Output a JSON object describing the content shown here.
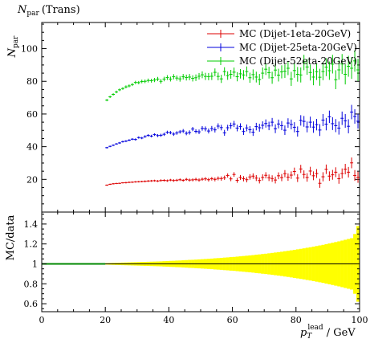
{
  "chart_data": {
    "type": "scatter",
    "title": "N_par (Trans)",
    "title_parts": {
      "symbol": "N",
      "sub": "par",
      "rest": "(Trans)"
    },
    "ylabel": {
      "symbol": "N",
      "sub": "par"
    },
    "xlabel": {
      "symbol": "p",
      "sub": "T",
      "sup": "lead",
      "rest": "/ GeV"
    },
    "ratio_ylabel": "MC/data",
    "xlim": [
      0,
      100
    ],
    "ylim": [
      0,
      116
    ],
    "ratio_ylim": [
      0.52,
      1.52
    ],
    "x_ticks": [
      "0",
      "20",
      "40",
      "60",
      "80",
      "100"
    ],
    "y_ticks": [
      "20",
      "40",
      "60",
      "80",
      "100"
    ],
    "ratio_y_ticks": [
      "0.6",
      "0.8",
      "1",
      "1.2",
      "1.4"
    ],
    "legend": "top-right",
    "series": [
      {
        "name": "MC (Dijet-1eta-20GeV)",
        "color": "#dd0000",
        "x": [
          20.5,
          21.5,
          22.5,
          23.5,
          24.5,
          25.5,
          26.5,
          27.5,
          28.5,
          29.5,
          30.5,
          31.5,
          32.5,
          33.5,
          34.5,
          35.5,
          36.5,
          37.5,
          38.5,
          39.5,
          40.5,
          41.5,
          42.5,
          43.5,
          44.5,
          45.5,
          46.5,
          47.5,
          48.5,
          49.5,
          50.5,
          51.5,
          52.5,
          53.5,
          54.5,
          55.5,
          56.5,
          57.5,
          58.5,
          59.5,
          60.5,
          61.5,
          62.5,
          63.5,
          64.5,
          65.5,
          66.5,
          67.5,
          68.5,
          69.5,
          70.5,
          71.5,
          72.5,
          73.5,
          74.5,
          75.5,
          76.5,
          77.5,
          78.5,
          79.5,
          80.5,
          81.5,
          82.5,
          83.5,
          84.5,
          85.5,
          86.5,
          87.5,
          88.5,
          89.5,
          90.5,
          91.5,
          92.5,
          93.5,
          94.5,
          95.5,
          96.5,
          97.5,
          98.5,
          99.5
        ],
        "y": [
          16.5,
          17.0,
          17.3,
          17.5,
          17.6,
          17.9,
          18.0,
          18.2,
          18.3,
          18.5,
          18.6,
          18.7,
          18.8,
          19.0,
          19.1,
          19.2,
          19.0,
          19.3,
          19.4,
          19.2,
          19.6,
          19.3,
          19.5,
          19.8,
          19.4,
          20.0,
          19.6,
          19.7,
          20.0,
          19.6,
          20.1,
          20.3,
          19.8,
          20.4,
          20.0,
          20.6,
          20.5,
          21.0,
          22.4,
          20.3,
          23.0,
          19.4,
          21.2,
          20.4,
          19.8,
          21.5,
          22.0,
          20.8,
          19.3,
          21.2,
          22.5,
          21.0,
          20.5,
          19.6,
          22.2,
          21.1,
          23.5,
          21.4,
          22.6,
          24.8,
          20.8,
          26.4,
          23.0,
          21.2,
          25.1,
          22.2,
          23.6,
          17.6,
          21.6,
          26.2,
          22.0,
          22.8,
          24.4,
          20.4,
          23.6,
          26.3,
          24.4,
          30.1,
          22.4,
          21.3
        ],
        "err": [
          0.4,
          0.4,
          0.4,
          0.4,
          0.4,
          0.4,
          0.5,
          0.5,
          0.5,
          0.5,
          0.5,
          0.5,
          0.6,
          0.6,
          0.6,
          0.6,
          0.6,
          0.7,
          0.7,
          0.7,
          0.7,
          0.8,
          0.8,
          0.8,
          0.8,
          0.9,
          0.9,
          0.9,
          1.0,
          1.0,
          1.0,
          1.1,
          1.1,
          1.1,
          1.2,
          1.2,
          1.3,
          1.3,
          1.3,
          1.4,
          1.4,
          1.5,
          1.5,
          1.6,
          1.6,
          1.7,
          1.7,
          1.8,
          1.8,
          1.9,
          1.9,
          2.0,
          2.0,
          2.1,
          2.1,
          2.2,
          2.2,
          2.3,
          2.3,
          2.4,
          2.4,
          2.5,
          2.5,
          2.6,
          2.6,
          2.7,
          2.7,
          2.8,
          2.8,
          2.9,
          2.9,
          3.0,
          3.0,
          3.1,
          3.1,
          3.2,
          3.2,
          3.3,
          3.3,
          3.4
        ]
      },
      {
        "name": "MC (Dijet-25eta-20GeV)",
        "color": "#0000dd",
        "x": [
          20.5,
          21.5,
          22.5,
          23.5,
          24.5,
          25.5,
          26.5,
          27.5,
          28.5,
          29.5,
          30.5,
          31.5,
          32.5,
          33.5,
          34.5,
          35.5,
          36.5,
          37.5,
          38.5,
          39.5,
          40.5,
          41.5,
          42.5,
          43.5,
          44.5,
          45.5,
          46.5,
          47.5,
          48.5,
          49.5,
          50.5,
          51.5,
          52.5,
          53.5,
          54.5,
          55.5,
          56.5,
          57.5,
          58.5,
          59.5,
          60.5,
          61.5,
          62.5,
          63.5,
          64.5,
          65.5,
          66.5,
          67.5,
          68.5,
          69.5,
          70.5,
          71.5,
          72.5,
          73.5,
          74.5,
          75.5,
          76.5,
          77.5,
          78.5,
          79.5,
          80.5,
          81.5,
          82.5,
          83.5,
          84.5,
          85.5,
          86.5,
          87.5,
          88.5,
          89.5,
          90.5,
          91.5,
          92.5,
          93.5,
          94.5,
          95.5,
          96.5,
          97.5,
          98.5,
          99.5
        ],
        "y": [
          39.4,
          40.2,
          40.9,
          41.7,
          42.3,
          43.1,
          43.4,
          44.0,
          44.6,
          44.4,
          45.6,
          45.3,
          46.2,
          46.9,
          46.5,
          47.4,
          46.8,
          47.0,
          47.6,
          48.8,
          48.6,
          47.7,
          48.4,
          49.1,
          49.6,
          48.2,
          48.7,
          50.8,
          49.4,
          49.1,
          51.2,
          50.9,
          49.6,
          51.1,
          50.3,
          52.6,
          51.7,
          48.5,
          51.6,
          52.8,
          53.9,
          51.4,
          52.3,
          49.3,
          51.5,
          50.4,
          48.9,
          52.3,
          51.6,
          53.1,
          54.2,
          52.7,
          55.0,
          51.0,
          53.9,
          52.9,
          50.1,
          54.5,
          53.6,
          51.9,
          49.3,
          56.1,
          55.5,
          52.1,
          55.0,
          52.0,
          53.5,
          50.2,
          56.3,
          53.8,
          58.3,
          54.1,
          52.9,
          51.4,
          57.4,
          55.8,
          52.5,
          61.2,
          58.5,
          55.6
        ],
        "err": [
          0.5,
          0.5,
          0.5,
          0.5,
          0.6,
          0.6,
          0.6,
          0.6,
          0.6,
          0.7,
          0.7,
          0.7,
          0.8,
          0.8,
          0.8,
          0.8,
          0.9,
          0.9,
          1.0,
          1.0,
          1.0,
          1.1,
          1.1,
          1.1,
          1.2,
          1.2,
          1.3,
          1.3,
          1.3,
          1.4,
          1.4,
          1.5,
          1.5,
          1.6,
          1.6,
          1.7,
          1.7,
          1.8,
          1.8,
          1.9,
          1.9,
          2.0,
          2.0,
          2.1,
          2.1,
          2.2,
          2.3,
          2.3,
          2.4,
          2.4,
          2.5,
          2.6,
          2.6,
          2.7,
          2.7,
          2.8,
          2.9,
          2.9,
          3.0,
          3.1,
          3.1,
          3.2,
          3.3,
          3.3,
          3.4,
          3.5,
          3.5,
          3.6,
          3.7,
          3.8,
          3.8,
          3.9,
          4.0,
          4.0,
          4.1,
          4.2,
          4.3,
          4.4,
          4.4,
          4.5
        ]
      },
      {
        "name": "MC (Dijet-52eta-20GeV)",
        "color": "#00cc00",
        "x": [
          20.5,
          21.5,
          22.5,
          23.5,
          24.5,
          25.5,
          26.5,
          27.5,
          28.5,
          29.5,
          30.5,
          31.5,
          32.5,
          33.5,
          34.5,
          35.5,
          36.5,
          37.5,
          38.5,
          39.5,
          40.5,
          41.5,
          42.5,
          43.5,
          44.5,
          45.5,
          46.5,
          47.5,
          48.5,
          49.5,
          50.5,
          51.5,
          52.5,
          53.5,
          54.5,
          55.5,
          56.5,
          57.5,
          58.5,
          59.5,
          60.5,
          61.5,
          62.5,
          63.5,
          64.5,
          65.5,
          66.5,
          67.5,
          68.5,
          69.5,
          70.5,
          71.5,
          72.5,
          73.5,
          74.5,
          75.5,
          76.5,
          77.5,
          78.5,
          79.5,
          80.5,
          81.5,
          82.5,
          83.5,
          84.5,
          85.5,
          86.5,
          87.5,
          88.5,
          89.5,
          90.5,
          91.5,
          92.5,
          93.5,
          94.5,
          95.5,
          96.5,
          97.5,
          98.5,
          99.5
        ],
        "y": [
          68.5,
          70.5,
          72.0,
          73.5,
          74.8,
          75.6,
          76.6,
          77.2,
          78.0,
          79.3,
          79.2,
          79.9,
          80.0,
          80.5,
          80.4,
          80.8,
          81.4,
          80.0,
          81.4,
          82.3,
          81.4,
          82.8,
          82.0,
          81.5,
          82.8,
          82.3,
          82.6,
          81.8,
          82.2,
          83.1,
          84.0,
          83.0,
          82.9,
          83.1,
          85.5,
          83.0,
          81.5,
          86.0,
          83.5,
          84.3,
          85.6,
          82.8,
          84.6,
          83.9,
          86.0,
          82.2,
          84.1,
          82.6,
          81.1,
          85.0,
          87.4,
          85.3,
          82.2,
          86.9,
          83.8,
          85.8,
          86.2,
          88.0,
          81.5,
          86.6,
          84.3,
          83.9,
          91.5,
          88.8,
          85.4,
          82.6,
          85.9,
          82.5,
          86.0,
          88.7,
          86.5,
          90.5,
          81.0,
          87.0,
          90.6,
          84.3,
          89.2,
          88.0,
          92.5,
          87.0
        ],
        "err": [
          0.7,
          0.7,
          0.7,
          0.8,
          0.8,
          0.8,
          0.9,
          0.9,
          0.9,
          1.0,
          1.0,
          1.1,
          1.1,
          1.2,
          1.2,
          1.3,
          1.3,
          1.4,
          1.4,
          1.5,
          1.5,
          1.6,
          1.6,
          1.7,
          1.7,
          1.8,
          1.9,
          1.9,
          2.0,
          2.0,
          2.1,
          2.2,
          2.2,
          2.3,
          2.4,
          2.4,
          2.5,
          2.6,
          2.6,
          2.7,
          2.8,
          2.8,
          2.9,
          3.0,
          3.1,
          3.1,
          3.2,
          3.3,
          3.4,
          3.5,
          3.5,
          3.6,
          3.7,
          3.8,
          3.9,
          4.0,
          4.1,
          4.2,
          4.3,
          4.4,
          4.5,
          4.6,
          4.7,
          4.8,
          4.9,
          5.0,
          5.1,
          5.2,
          5.3,
          5.5,
          5.6,
          5.7,
          5.8,
          6.0,
          6.1,
          6.2,
          6.4,
          6.5,
          6.6,
          6.8
        ]
      }
    ],
    "ratio_band": {
      "color": "#ffff00",
      "x": [
        20.5,
        21.5,
        22.5,
        23.5,
        24.5,
        25.5,
        26.5,
        27.5,
        28.5,
        29.5,
        30.5,
        31.5,
        32.5,
        33.5,
        34.5,
        35.5,
        36.5,
        37.5,
        38.5,
        39.5,
        40.5,
        41.5,
        42.5,
        43.5,
        44.5,
        45.5,
        46.5,
        47.5,
        48.5,
        49.5,
        50.5,
        51.5,
        52.5,
        53.5,
        54.5,
        55.5,
        56.5,
        57.5,
        58.5,
        59.5,
        60.5,
        61.5,
        62.5,
        63.5,
        64.5,
        65.5,
        66.5,
        67.5,
        68.5,
        69.5,
        70.5,
        71.5,
        72.5,
        73.5,
        74.5,
        75.5,
        76.5,
        77.5,
        78.5,
        79.5,
        80.5,
        81.5,
        82.5,
        83.5,
        84.5,
        85.5,
        86.5,
        87.5,
        88.5,
        89.5,
        90.5,
        91.5,
        92.5,
        93.5,
        94.5,
        95.5,
        96.5,
        97.5,
        98.5,
        99.5
      ],
      "half_width": [
        0.008,
        0.009,
        0.01,
        0.011,
        0.012,
        0.013,
        0.014,
        0.015,
        0.016,
        0.017,
        0.018,
        0.019,
        0.02,
        0.021,
        0.022,
        0.023,
        0.024,
        0.025,
        0.027,
        0.028,
        0.03,
        0.031,
        0.033,
        0.034,
        0.036,
        0.038,
        0.04,
        0.041,
        0.043,
        0.045,
        0.047,
        0.049,
        0.051,
        0.053,
        0.056,
        0.058,
        0.06,
        0.063,
        0.065,
        0.068,
        0.07,
        0.073,
        0.076,
        0.079,
        0.082,
        0.085,
        0.088,
        0.092,
        0.095,
        0.099,
        0.102,
        0.106,
        0.11,
        0.114,
        0.118,
        0.122,
        0.127,
        0.131,
        0.136,
        0.141,
        0.146,
        0.151,
        0.156,
        0.162,
        0.167,
        0.173,
        0.179,
        0.185,
        0.191,
        0.198,
        0.205,
        0.212,
        0.219,
        0.226,
        0.234,
        0.242,
        0.25,
        0.258,
        0.3,
        0.38
      ]
    },
    "ratio_reference_line": {
      "color": "#008800",
      "x_from": 0,
      "x_to": 20
    }
  }
}
